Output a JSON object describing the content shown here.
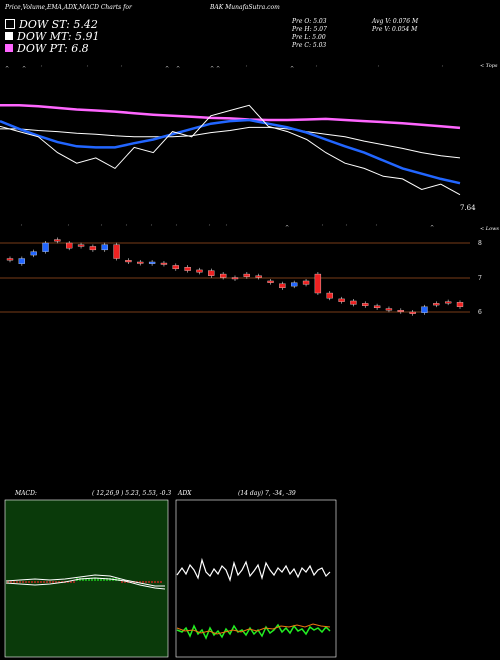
{
  "header": {
    "title": "Price,Volume,EMA,ADX,MACD Charts for",
    "symbol": "BAK MunafaSutra.com"
  },
  "legend": [
    {
      "label": "DOW ST: 5.42",
      "color": "#000000",
      "border": "#ffffff"
    },
    {
      "label": "DOW MT: 5.91",
      "color": "#ffffff",
      "border": "#ffffff"
    },
    {
      "label": "DOW PT: 6.8",
      "color": "#ff66ff",
      "border": "#ff66ff"
    }
  ],
  "ohlc": {
    "open": "Pre O: 5.03",
    "high": "Pre H: 5.07",
    "low": "Pre L: 5.00",
    "close": "Pre C: 5.03"
  },
  "volume_stats": {
    "avg": "Avg V: 0.076 M",
    "pre": "Pre V: 0.054 M"
  },
  "ema_panel": {
    "right_label": "< Tops",
    "last_value": "7.64"
  },
  "candle_panel": {
    "right_label": "< Lows",
    "price_levels": [
      "8",
      "7",
      "6"
    ]
  },
  "macd_panel": {
    "label": "MACD:",
    "params": "( 12,26,9 ) 5.23, 5.53, -0.3"
  },
  "adx_panel": {
    "label": "ADX",
    "params": "(14 day) 7, -34, -39"
  },
  "chart_data": [
    {
      "type": "line",
      "title": "",
      "series": [
        {
          "name": "",
          "color": "#ff66ff",
          "values": [
            8.2,
            8.2,
            8.18,
            8.15,
            8.12,
            8.1,
            8.08,
            8.05,
            8.02,
            8.0,
            7.98,
            7.96,
            7.95,
            7.93,
            7.92,
            7.92,
            7.93,
            7.94,
            7.92,
            7.9,
            7.88,
            7.86,
            7.83,
            7.8,
            7.77
          ]
        },
        {
          "name": "",
          "color": "#ffffff",
          "values": [
            7.75,
            7.75,
            7.72,
            7.7,
            7.67,
            7.65,
            7.62,
            7.6,
            7.6,
            7.6,
            7.62,
            7.68,
            7.72,
            7.78,
            7.78,
            7.75,
            7.7,
            7.65,
            7.6,
            7.52,
            7.45,
            7.38,
            7.3,
            7.24,
            7.2
          ]
        },
        {
          "name": "",
          "color": "#2266ff",
          "values": [
            7.9,
            7.75,
            7.62,
            7.5,
            7.42,
            7.4,
            7.4,
            7.48,
            7.55,
            7.65,
            7.75,
            7.85,
            7.9,
            7.92,
            7.85,
            7.78,
            7.68,
            7.55,
            7.42,
            7.3,
            7.15,
            7.0,
            6.9,
            6.8,
            6.72
          ]
        },
        {
          "name": "",
          "color": "#ffffff",
          "values": [
            7.8,
            7.7,
            7.6,
            7.3,
            7.1,
            7.2,
            7.0,
            7.4,
            7.3,
            7.7,
            7.6,
            8.0,
            8.1,
            8.2,
            7.8,
            7.7,
            7.55,
            7.3,
            7.1,
            7.0,
            6.85,
            6.8,
            6.6,
            6.7,
            6.5
          ]
        }
      ]
    },
    {
      "type": "bar",
      "title": "",
      "yticks": [
        8,
        7,
        6
      ],
      "candles": [
        {
          "o": 7.5,
          "c": 7.55,
          "up": false
        },
        {
          "o": 7.55,
          "c": 7.4,
          "up": true
        },
        {
          "o": 7.65,
          "c": 7.75,
          "up": true
        },
        {
          "o": 7.75,
          "c": 8.0,
          "up": true
        },
        {
          "o": 8.1,
          "c": 8.05,
          "up": false
        },
        {
          "o": 8.0,
          "c": 7.85,
          "up": false
        },
        {
          "o": 7.95,
          "c": 7.9,
          "up": false
        },
        {
          "o": 7.9,
          "c": 7.8,
          "up": false
        },
        {
          "o": 7.8,
          "c": 7.95,
          "up": true
        },
        {
          "o": 7.95,
          "c": 7.55,
          "up": false
        },
        {
          "o": 7.5,
          "c": 7.45,
          "up": false
        },
        {
          "o": 7.45,
          "c": 7.42,
          "up": false
        },
        {
          "o": 7.45,
          "c": 7.4,
          "up": true
        },
        {
          "o": 7.42,
          "c": 7.38,
          "up": false
        },
        {
          "o": 7.35,
          "c": 7.25,
          "up": false
        },
        {
          "o": 7.3,
          "c": 7.2,
          "up": false
        },
        {
          "o": 7.22,
          "c": 7.15,
          "up": false
        },
        {
          "o": 7.2,
          "c": 7.05,
          "up": false
        },
        {
          "o": 7.1,
          "c": 7.0,
          "up": false
        },
        {
          "o": 7.0,
          "c": 6.98,
          "up": false
        },
        {
          "o": 7.1,
          "c": 7.02,
          "up": false
        },
        {
          "o": 7.05,
          "c": 7.0,
          "up": false
        },
        {
          "o": 6.9,
          "c": 6.85,
          "up": false
        },
        {
          "o": 6.82,
          "c": 6.7,
          "up": false
        },
        {
          "o": 6.75,
          "c": 6.85,
          "up": true
        },
        {
          "o": 6.9,
          "c": 6.8,
          "up": false
        },
        {
          "o": 7.1,
          "c": 6.55,
          "up": false
        },
        {
          "o": 6.55,
          "c": 6.4,
          "up": false
        },
        {
          "o": 6.38,
          "c": 6.3,
          "up": false
        },
        {
          "o": 6.32,
          "c": 6.22,
          "up": false
        },
        {
          "o": 6.25,
          "c": 6.18,
          "up": false
        },
        {
          "o": 6.18,
          "c": 6.12,
          "up": false
        },
        {
          "o": 6.1,
          "c": 6.05,
          "up": false
        },
        {
          "o": 6.05,
          "c": 6.02,
          "up": false
        },
        {
          "o": 6.0,
          "c": 5.95,
          "up": false
        },
        {
          "o": 5.98,
          "c": 6.15,
          "up": true
        },
        {
          "o": 6.2,
          "c": 6.25,
          "up": false
        },
        {
          "o": 6.3,
          "c": 6.3,
          "up": false
        },
        {
          "o": 6.28,
          "c": 6.15,
          "up": false
        }
      ]
    }
  ]
}
